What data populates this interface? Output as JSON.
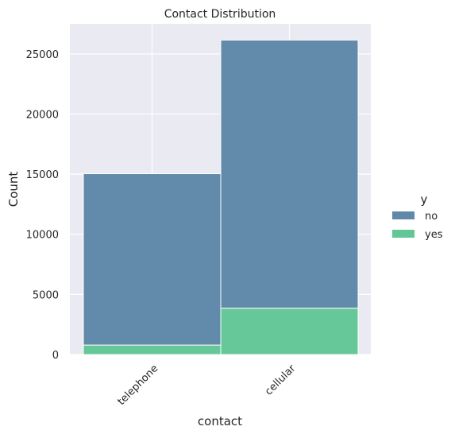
{
  "chart_data": {
    "type": "bar",
    "stacked": true,
    "title": "Contact Distribution",
    "xlabel": "contact",
    "ylabel": "Count",
    "categories": [
      "telephone",
      "cellular"
    ],
    "series": [
      {
        "name": "no",
        "values": [
          14250,
          22300
        ],
        "color": "#5f88a9"
      },
      {
        "name": "yes",
        "values": [
          787,
          3853
        ],
        "color": "#63c696"
      }
    ],
    "ylim": [
      0,
      27500
    ],
    "yticks": [
      "0",
      "5000",
      "10000",
      "15000",
      "20000",
      "25000"
    ],
    "grid": true,
    "background_color": "#eaeaf2",
    "legend_title": "y",
    "legend_position": "right"
  }
}
